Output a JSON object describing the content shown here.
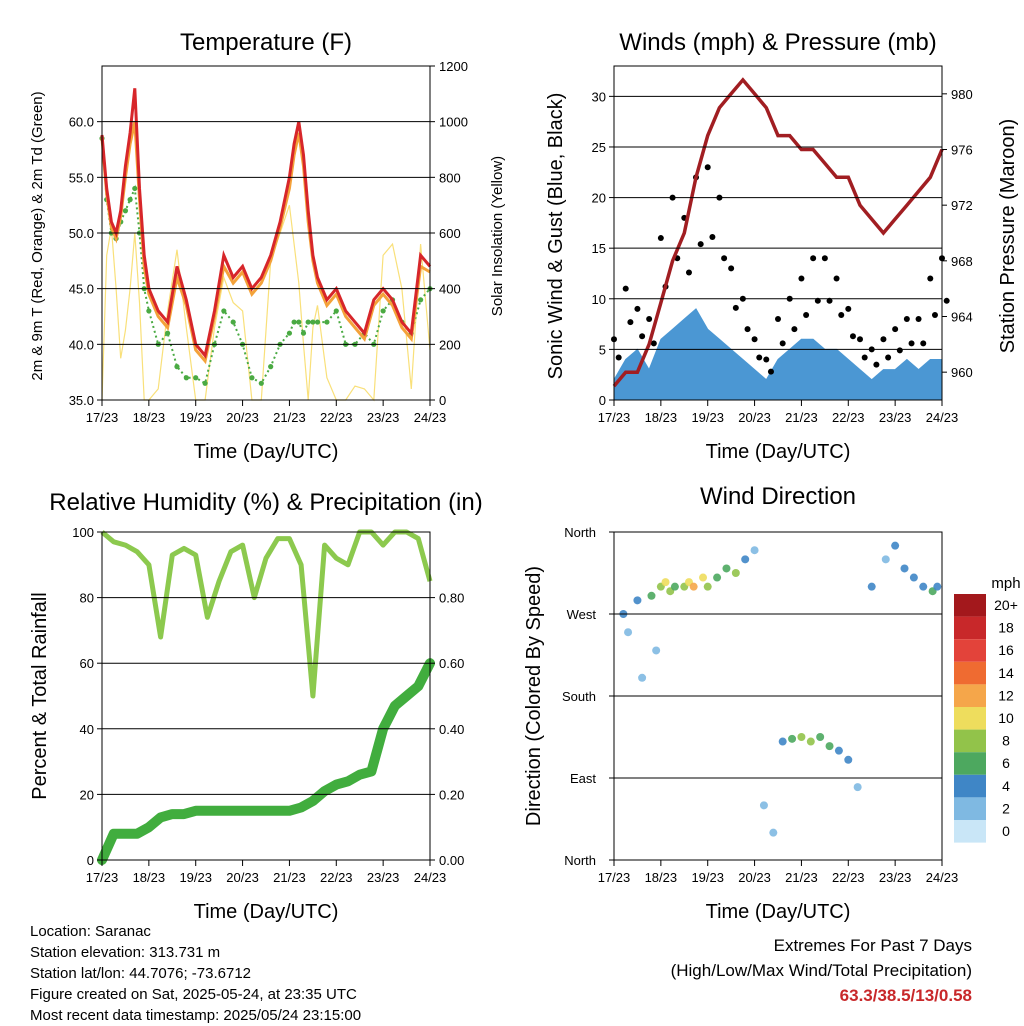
{
  "panels": {
    "temperature": {
      "title": "Temperature (F)",
      "ylabel_left": "2m & 9m T (Red, Orange) & 2m Td (Green)",
      "ylabel_right": "Solar Insolation (Yellow)",
      "xlabel": "Time (Day/UTC)"
    },
    "winds": {
      "title": "Winds (mph) & Pressure (mb)",
      "ylabel_left": "Sonic Wind & Gust (Blue, Black)",
      "ylabel_right": "Station Pressure (Maroon)",
      "xlabel": "Time (Day/UTC)"
    },
    "humidity": {
      "title": "Relative Humidity (%) & Precipitation (in)",
      "ylabel_left": "Percent & Total Rainfall",
      "xlabel": "Time (Day/UTC)"
    },
    "direction": {
      "title": "Wind Direction",
      "ylabel_left": "Direction (Colored By Speed)",
      "xlabel": "Time (Day/UTC)",
      "colorbar_title": "mph"
    }
  },
  "info": {
    "location": "Location: Saranac",
    "elevation": "Station elevation: 313.731 m",
    "latlon": "Station lat/lon: 44.7076; -73.6712",
    "created": "Figure created on Sat, 2025-05-24, at 23:35 UTC",
    "recent": "Most recent data timestamp: 2025/05/24 23:15:00"
  },
  "extremes": {
    "line1": "Extremes For Past 7 Days",
    "line2": "(High/Low/Max Wind/Total Precipitation)",
    "values": "63.3/38.5/13/0.58"
  },
  "colors": {
    "temp_2m": "#d7262a",
    "temp_9m": "#f4a23a",
    "dewpoint": "#4aaa43",
    "solar": "#f9e07a",
    "wind": "#4b97d3",
    "gust": "#000000",
    "pressure": "#a11e22",
    "rh": "#8cc94e",
    "precip": "#41ad3e"
  },
  "chart_data": [
    {
      "type": "line",
      "name": "temperature",
      "x_ticks": [
        "17/23",
        "18/23",
        "19/23",
        "20/23",
        "21/23",
        "22/23",
        "23/23",
        "24/23"
      ],
      "x": [
        0,
        0.1,
        0.2,
        0.3,
        0.4,
        0.5,
        0.6,
        0.7,
        0.8,
        0.9,
        1,
        1.2,
        1.4,
        1.6,
        1.8,
        2,
        2.2,
        2.4,
        2.6,
        2.8,
        3,
        3.2,
        3.4,
        3.6,
        3.8,
        4,
        4.1,
        4.2,
        4.3,
        4.4,
        4.5,
        4.6,
        4.8,
        5,
        5.2,
        5.4,
        5.6,
        5.8,
        6,
        6.2,
        6.4,
        6.6,
        6.8,
        7
      ],
      "ylim_left": [
        35,
        65
      ],
      "yticks_left": [
        "35.0",
        "40.0",
        "45.0",
        "50.0",
        "55.0",
        "60.0"
      ],
      "ylim_right": [
        0,
        1200
      ],
      "yticks_right": [
        "0",
        "200",
        "400",
        "600",
        "800",
        "1000",
        "1200"
      ],
      "series": [
        {
          "name": "2m T",
          "axis": "left",
          "values": [
            58.8,
            54,
            51,
            50,
            52,
            56,
            59,
            63,
            54,
            48,
            45,
            43,
            42,
            47,
            44,
            40,
            39,
            43,
            48,
            46,
            47,
            45,
            46,
            48,
            51,
            55,
            58,
            60,
            57,
            52,
            48,
            46,
            44,
            45,
            43,
            42,
            41,
            44,
            45,
            44,
            42,
            41,
            48,
            47
          ]
        },
        {
          "name": "9m T",
          "axis": "left",
          "values": [
            58.5,
            53.5,
            50.5,
            49.5,
            51.5,
            55,
            58,
            60,
            53,
            47,
            44.5,
            42.5,
            41.5,
            46,
            43.5,
            39.5,
            38.5,
            42.5,
            47,
            45.5,
            46.5,
            44.5,
            45.5,
            47.5,
            50.5,
            54,
            57,
            59,
            56,
            51,
            47.5,
            45.5,
            43.5,
            44.5,
            42.5,
            41.5,
            40.5,
            43.5,
            44.5,
            43.5,
            41.5,
            40.5,
            47,
            46.5
          ]
        },
        {
          "name": "2m Td",
          "axis": "left",
          "values": [
            58.5,
            53,
            50,
            49.5,
            51,
            52,
            53,
            54,
            50,
            45,
            43,
            40,
            41,
            38,
            37,
            37,
            36.5,
            40,
            43,
            42,
            40,
            37,
            36.5,
            38,
            40,
            41,
            42,
            42,
            41,
            42,
            42,
            42,
            42,
            43,
            40,
            40,
            41,
            40,
            43,
            44,
            42,
            41,
            44,
            45
          ]
        },
        {
          "name": "Solar Insolation",
          "axis": "right",
          "values": [
            0,
            520,
            620,
            400,
            150,
            250,
            400,
            600,
            350,
            0,
            0,
            40,
            320,
            540,
            260,
            0,
            0,
            260,
            440,
            350,
            320,
            0,
            0,
            500,
            600,
            700,
            560,
            420,
            200,
            0,
            260,
            340,
            80,
            0,
            0,
            50,
            40,
            0,
            520,
            560,
            400,
            40,
            560,
            180
          ]
        }
      ]
    },
    {
      "type": "scatter",
      "name": "winds_pressure",
      "x_ticks": [
        "17/23",
        "18/23",
        "19/23",
        "20/23",
        "21/23",
        "22/23",
        "23/23",
        "24/23"
      ],
      "x": [
        0,
        0.25,
        0.5,
        0.75,
        1,
        1.25,
        1.5,
        1.75,
        2,
        2.25,
        2.5,
        2.75,
        3,
        3.25,
        3.5,
        3.75,
        4,
        4.25,
        4.5,
        4.75,
        5,
        5.25,
        5.5,
        5.75,
        6,
        6.25,
        6.5,
        6.75,
        7
      ],
      "ylim_left": [
        0,
        33
      ],
      "yticks_left": [
        "0",
        "5",
        "10",
        "15",
        "20",
        "25",
        "30"
      ],
      "ylim_right": [
        958,
        982
      ],
      "yticks_right": [
        "960",
        "964",
        "968",
        "972",
        "976",
        "980"
      ],
      "series": [
        {
          "name": "Sonic Wind",
          "axis": "left",
          "values": [
            2,
            4,
            5,
            3,
            6,
            7,
            8,
            9,
            7,
            6,
            5,
            4,
            3,
            2,
            4,
            5,
            6,
            6,
            5,
            5,
            4,
            3,
            2,
            3,
            3,
            4,
            3,
            4,
            4
          ]
        },
        {
          "name": "Gust",
          "axis": "left",
          "values": [
            6,
            11,
            9,
            8,
            16,
            20,
            18,
            22,
            23,
            20,
            13,
            10,
            6,
            4,
            8,
            10,
            12,
            14,
            14,
            12,
            9,
            6,
            5,
            6,
            7,
            8,
            8,
            12,
            14
          ]
        },
        {
          "name": "Station Pressure",
          "axis": "right",
          "values": [
            959,
            960,
            960,
            962,
            965,
            968,
            970,
            974,
            977,
            979,
            980,
            981,
            980,
            979,
            977,
            977,
            976,
            976,
            975,
            974,
            974,
            972,
            971,
            970,
            971,
            972,
            973,
            974,
            976
          ]
        }
      ]
    },
    {
      "type": "line",
      "name": "humidity_precip",
      "x_ticks": [
        "17/23",
        "18/23",
        "19/23",
        "20/23",
        "21/23",
        "22/23",
        "23/23",
        "24/23"
      ],
      "x": [
        0,
        0.25,
        0.5,
        0.75,
        1,
        1.25,
        1.5,
        1.75,
        2,
        2.25,
        2.5,
        2.75,
        3,
        3.25,
        3.5,
        3.75,
        4,
        4.25,
        4.5,
        4.75,
        5,
        5.25,
        5.5,
        5.75,
        6,
        6.25,
        6.5,
        6.75,
        7
      ],
      "ylim_left": [
        0,
        100
      ],
      "yticks_left": [
        "0",
        "20",
        "40",
        "60",
        "80",
        "100"
      ],
      "ylim_right": [
        0,
        1.0
      ],
      "yticks_right": [
        "0.00",
        "0.20",
        "0.40",
        "0.60",
        "0.80"
      ],
      "series": [
        {
          "name": "Relative Humidity",
          "axis": "left",
          "values": [
            100,
            97,
            96,
            94,
            90,
            68,
            93,
            95,
            93,
            74,
            85,
            94,
            96,
            80,
            92,
            98,
            98,
            90,
            50,
            96,
            92,
            90,
            100,
            100,
            96,
            100,
            100,
            98,
            85
          ]
        },
        {
          "name": "Total Precipitation",
          "axis": "right",
          "values": [
            0,
            0.08,
            0.08,
            0.08,
            0.1,
            0.13,
            0.14,
            0.14,
            0.15,
            0.15,
            0.15,
            0.15,
            0.15,
            0.15,
            0.15,
            0.15,
            0.15,
            0.16,
            0.18,
            0.21,
            0.23,
            0.24,
            0.26,
            0.27,
            0.4,
            0.47,
            0.5,
            0.53,
            0.6
          ]
        }
      ]
    },
    {
      "type": "scatter",
      "name": "wind_direction",
      "x_ticks": [
        "17/23",
        "18/23",
        "19/23",
        "20/23",
        "21/23",
        "22/23",
        "23/23",
        "24/23"
      ],
      "y_ticks": [
        "North",
        "West",
        "South",
        "East",
        "North"
      ],
      "ylim": [
        0,
        360
      ],
      "colorbar_labels": [
        "20+",
        "18",
        "16",
        "14",
        "12",
        "10",
        "8",
        "6",
        "4",
        "2",
        "0"
      ],
      "colorbar_colors": [
        "#a3181c",
        "#c8282a",
        "#e3433a",
        "#ef6b31",
        "#f5a64a",
        "#eedd5d",
        "#92c34a",
        "#4da85f",
        "#3f86c6",
        "#7fb9e2",
        "#c9e6f7"
      ],
      "points": [
        {
          "x": 0.2,
          "dir": 270,
          "speed": 3
        },
        {
          "x": 0.3,
          "dir": 250,
          "speed": 2
        },
        {
          "x": 0.5,
          "dir": 285,
          "speed": 4
        },
        {
          "x": 0.6,
          "dir": 200,
          "speed": 2
        },
        {
          "x": 0.8,
          "dir": 290,
          "speed": 5
        },
        {
          "x": 0.9,
          "dir": 230,
          "speed": 2
        },
        {
          "x": 1.0,
          "dir": 300,
          "speed": 7
        },
        {
          "x": 1.1,
          "dir": 305,
          "speed": 10
        },
        {
          "x": 1.2,
          "dir": 295,
          "speed": 8
        },
        {
          "x": 1.3,
          "dir": 300,
          "speed": 6
        },
        {
          "x": 1.5,
          "dir": 300,
          "speed": 7
        },
        {
          "x": 1.6,
          "dir": 305,
          "speed": 9
        },
        {
          "x": 1.7,
          "dir": 300,
          "speed": 11
        },
        {
          "x": 1.9,
          "dir": 310,
          "speed": 10
        },
        {
          "x": 2.0,
          "dir": 300,
          "speed": 8
        },
        {
          "x": 2.2,
          "dir": 310,
          "speed": 6
        },
        {
          "x": 2.4,
          "dir": 320,
          "speed": 5
        },
        {
          "x": 2.6,
          "dir": 315,
          "speed": 7
        },
        {
          "x": 2.8,
          "dir": 330,
          "speed": 4
        },
        {
          "x": 3.0,
          "dir": 340,
          "speed": 2
        },
        {
          "x": 3.2,
          "dir": 60,
          "speed": 1
        },
        {
          "x": 3.4,
          "dir": 30,
          "speed": 2
        },
        {
          "x": 3.6,
          "dir": 130,
          "speed": 4
        },
        {
          "x": 3.8,
          "dir": 133,
          "speed": 6
        },
        {
          "x": 4.0,
          "dir": 135,
          "speed": 7
        },
        {
          "x": 4.2,
          "dir": 130,
          "speed": 8
        },
        {
          "x": 4.4,
          "dir": 135,
          "speed": 6
        },
        {
          "x": 4.6,
          "dir": 125,
          "speed": 5
        },
        {
          "x": 4.8,
          "dir": 120,
          "speed": 4
        },
        {
          "x": 5.0,
          "dir": 110,
          "speed": 3
        },
        {
          "x": 5.2,
          "dir": 80,
          "speed": 2
        },
        {
          "x": 5.5,
          "dir": 300,
          "speed": 3
        },
        {
          "x": 5.8,
          "dir": 330,
          "speed": 2
        },
        {
          "x": 6.0,
          "dir": 345,
          "speed": 3
        },
        {
          "x": 6.2,
          "dir": 320,
          "speed": 4
        },
        {
          "x": 6.4,
          "dir": 310,
          "speed": 3
        },
        {
          "x": 6.6,
          "dir": 300,
          "speed": 4
        },
        {
          "x": 6.8,
          "dir": 295,
          "speed": 5
        },
        {
          "x": 6.9,
          "dir": 300,
          "speed": 4
        }
      ]
    }
  ]
}
